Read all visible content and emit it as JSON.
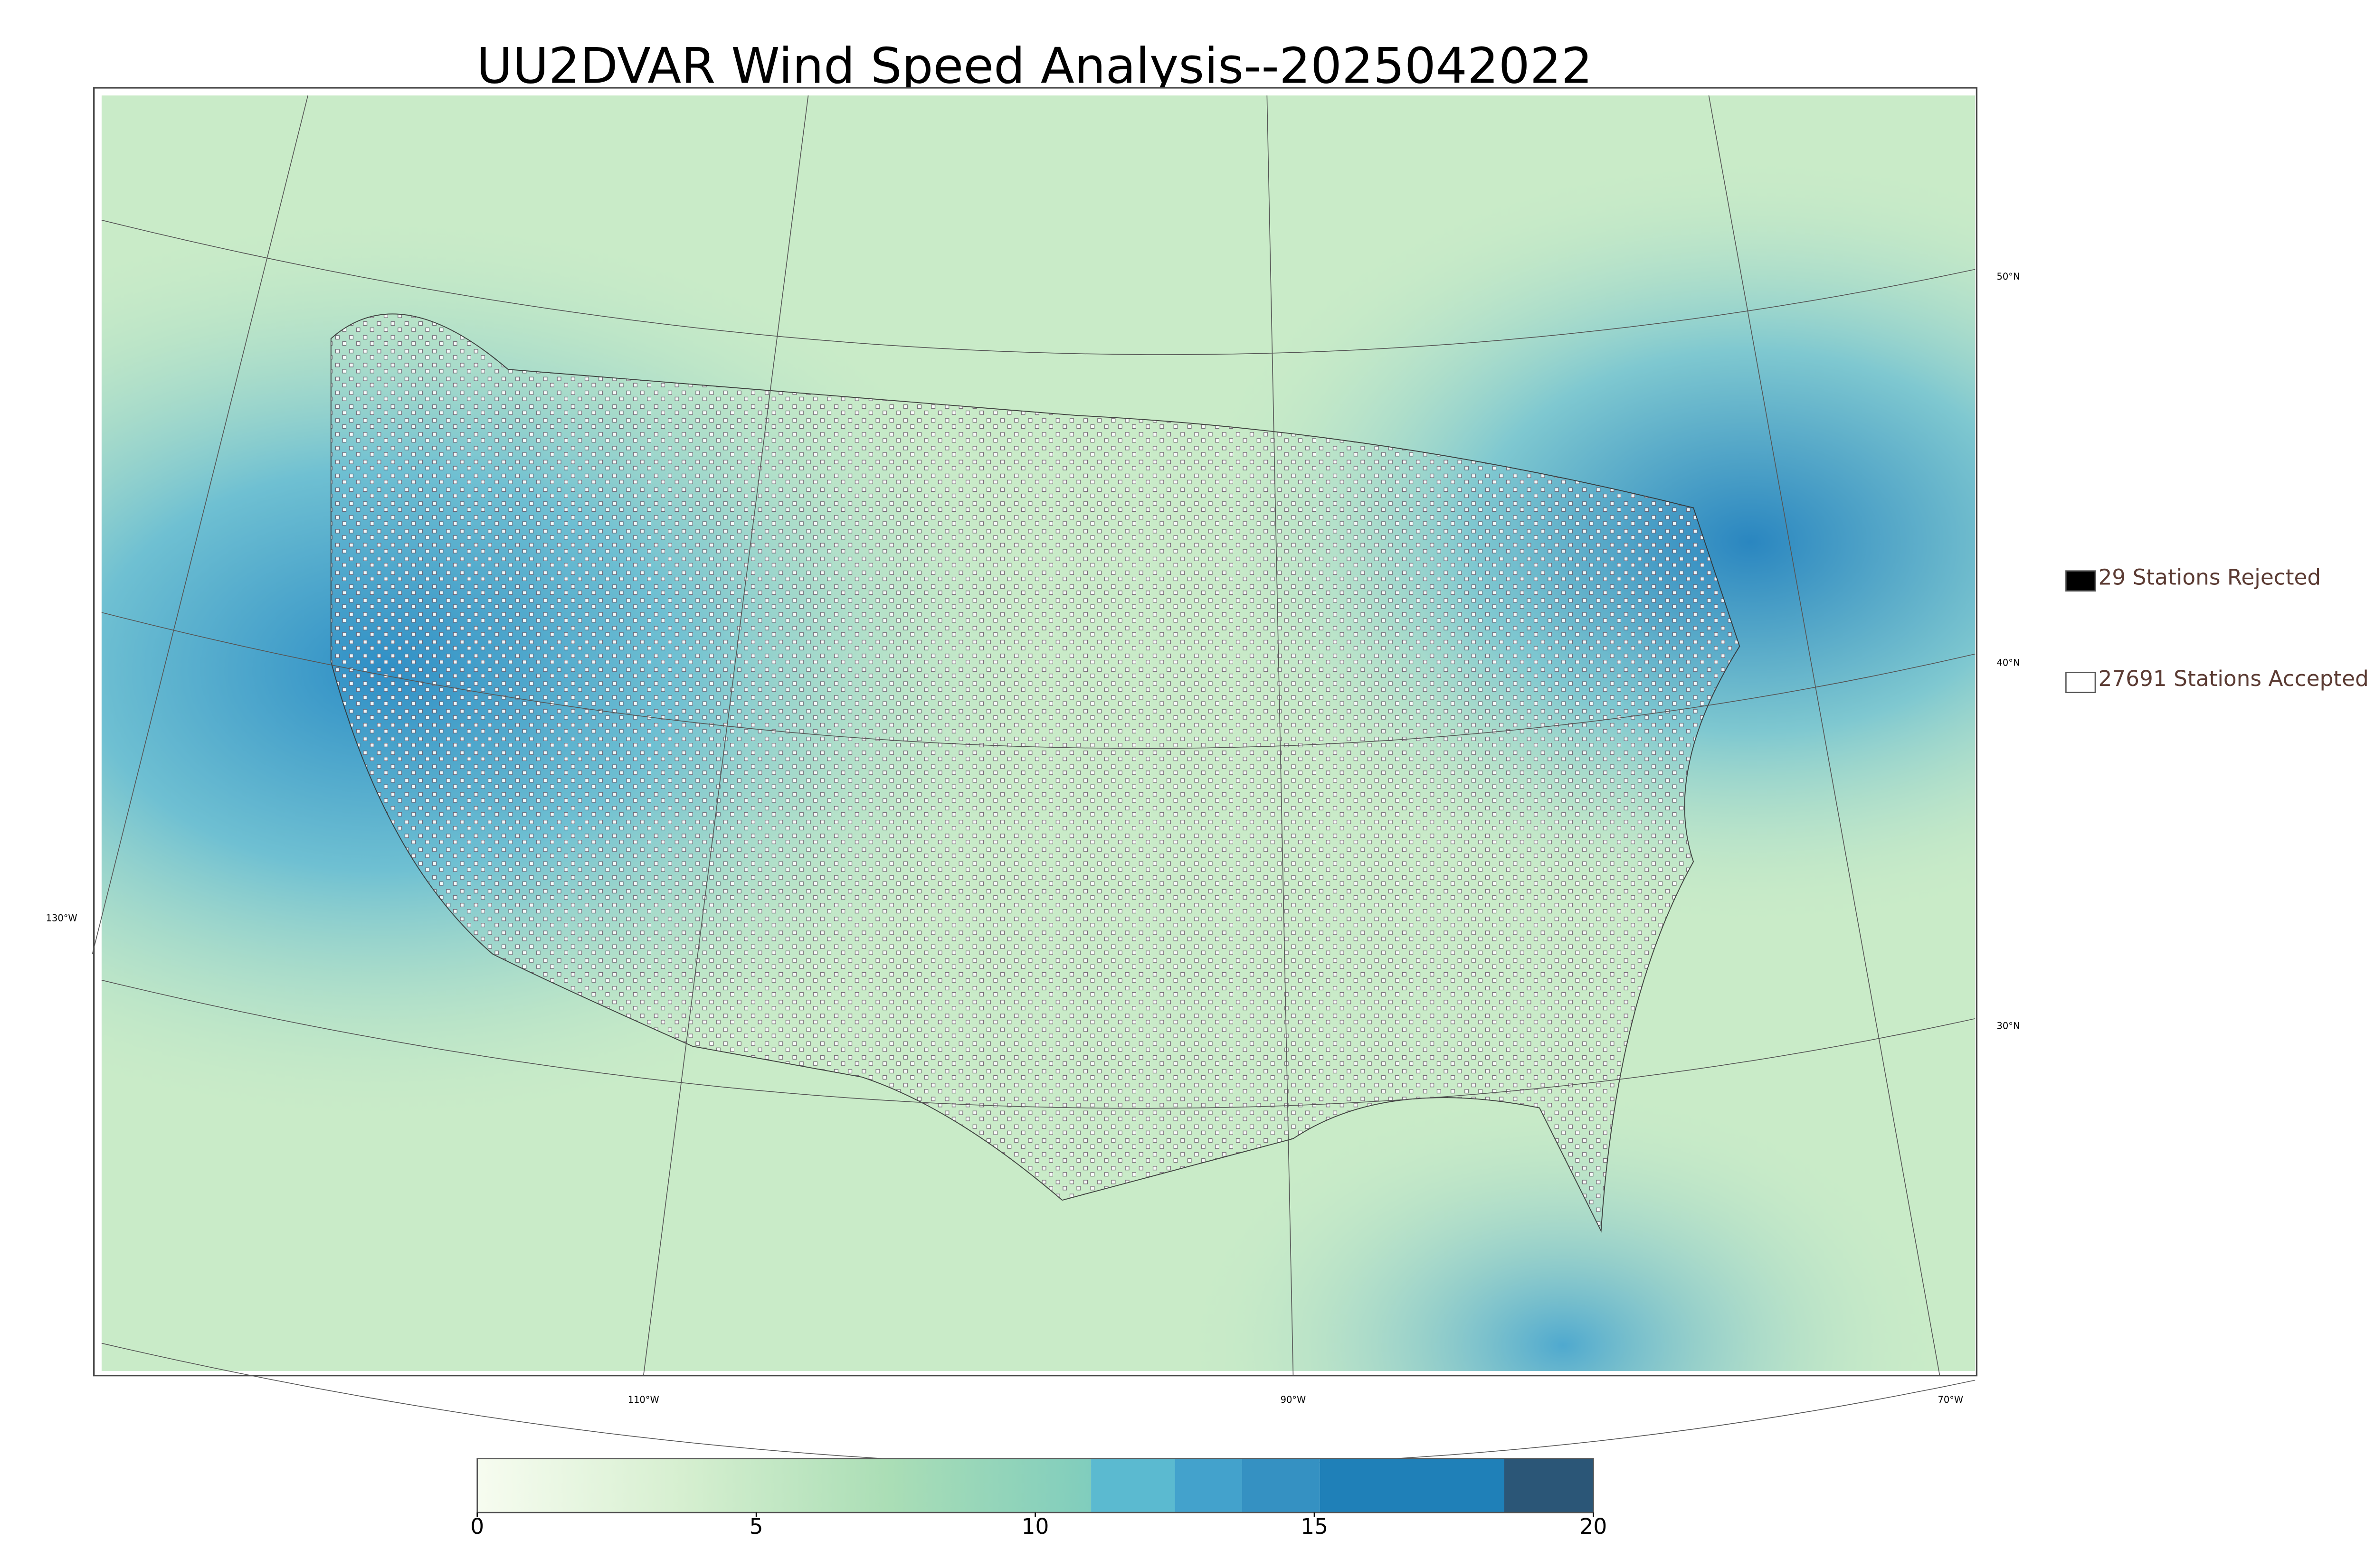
{
  "title": "UU2DVAR Wind Speed Analysis--2025042022",
  "legend": {
    "rejected": {
      "label": "29 Stations Rejected",
      "color": "#000000"
    },
    "accepted": {
      "label": "27691 Stations Accepted",
      "color": "#ffffff"
    }
  },
  "map": {
    "lat_labels": [
      "50°N",
      "40°N",
      "30°N"
    ],
    "lon_labels": [
      "130°W",
      "110°W",
      "90°W",
      "70°W"
    ]
  },
  "colorbar": {
    "range": [
      0,
      20
    ],
    "ticks": [
      0,
      5,
      10,
      15,
      20
    ],
    "gradient": {
      "from": 0,
      "to": 11,
      "colors": [
        "#f7fcf0",
        "#d6efd0",
        "#abdeb6",
        "#80cdbd"
      ]
    },
    "bands": [
      {
        "from": 11,
        "to": 12.5,
        "color": "#5bbad0"
      },
      {
        "from": 12.5,
        "to": 13.7,
        "color": "#43a2cc"
      },
      {
        "from": 13.7,
        "to": 15.1,
        "color": "#3591c2"
      },
      {
        "from": 15.1,
        "to": 18.4,
        "color": "#1f80b8"
      },
      {
        "from": 18.4,
        "to": 20,
        "color": "#2b5677"
      }
    ]
  }
}
